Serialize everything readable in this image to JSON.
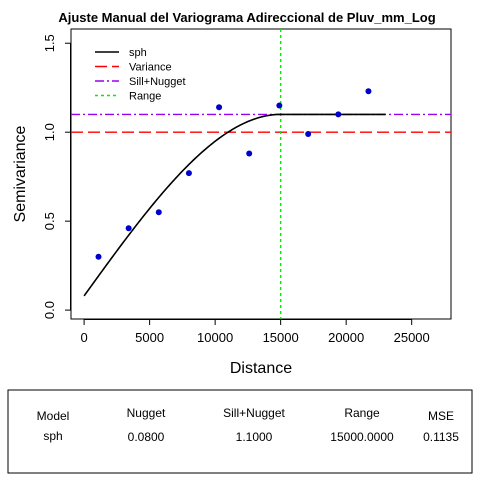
{
  "chart_data": {
    "type": "scatter",
    "title": "Ajuste Manual del Variograma Adireccional de Pluv_mm_Log",
    "xlabel": "Distance",
    "ylabel": "Semivariance",
    "xlim": [
      -1000,
      28000
    ],
    "ylim": [
      -0.05,
      1.58
    ],
    "xticks": [
      0,
      5000,
      10000,
      15000,
      20000,
      25000
    ],
    "xtick_labels": [
      "0",
      "5000",
      "10000",
      "15000",
      "20000",
      "25000"
    ],
    "yticks": [
      0.0,
      0.5,
      1.0,
      1.5
    ],
    "ytick_labels": [
      "0.0",
      "0.5",
      "1.0",
      "1.5"
    ],
    "grid": false,
    "legend_position": "top-left",
    "points": {
      "name": "",
      "color": "#0000cc",
      "x": [
        1100,
        3400,
        5700,
        8000,
        10300,
        12600,
        14900,
        17100,
        19400,
        21700
      ],
      "y": [
        0.3,
        0.46,
        0.55,
        0.77,
        1.14,
        0.88,
        1.15,
        0.99,
        1.1,
        1.23
      ]
    },
    "model_curve": {
      "name": "sph",
      "color": "#000000",
      "nugget": 0.08,
      "sill_nugget": 1.1,
      "range": 15000,
      "x_start": 0,
      "x_end": 23000
    },
    "reference_lines": [
      {
        "name": "Variance",
        "type": "h",
        "value": 1.0,
        "color": "#ff0000",
        "dash": "dashed"
      },
      {
        "name": "Sill+Nugget",
        "type": "h",
        "value": 1.1,
        "color": "#9900ee",
        "dash": "dotdash"
      },
      {
        "name": "Range",
        "type": "v",
        "value": 15000,
        "color": "#00ee00",
        "dash": "dotted"
      }
    ],
    "legend": [
      {
        "label": "sph",
        "color": "#000000",
        "dash": "solid"
      },
      {
        "label": "Variance",
        "color": "#ff0000",
        "dash": "dashed"
      },
      {
        "label": "Sill+Nugget",
        "color": "#9900ee",
        "dash": "dotdash"
      },
      {
        "label": "Range",
        "color": "#00ee00",
        "dash": "dotted"
      }
    ]
  },
  "summary_table": {
    "headers": [
      "Model",
      "Nugget",
      "Sill+Nugget",
      "Range",
      "MSE"
    ],
    "row": [
      "sph",
      "0.0800",
      "1.1000",
      "15000.0000",
      "0.1135"
    ]
  }
}
